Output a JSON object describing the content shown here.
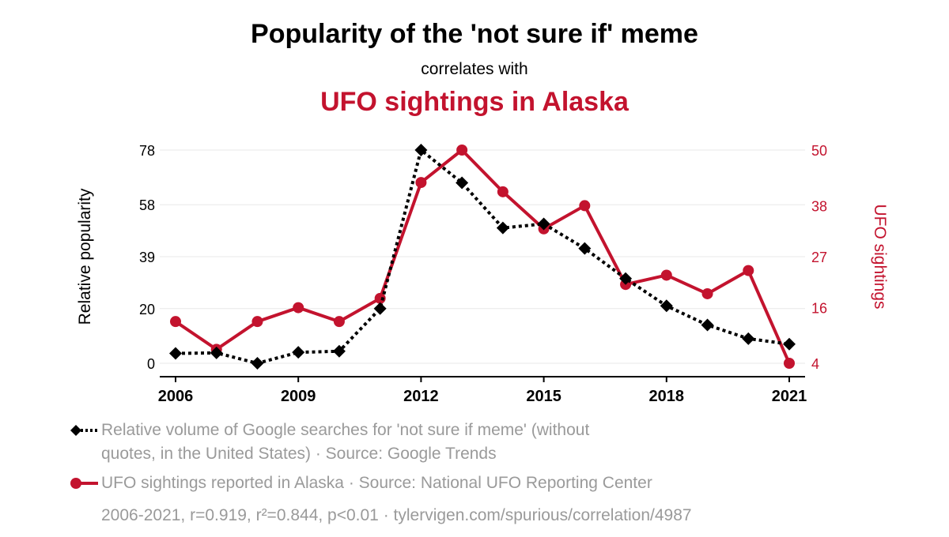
{
  "header": {
    "title": "Popularity of the 'not sure if' meme",
    "subtitle": "correlates with",
    "title2": "UFO sightings in Alaska"
  },
  "colors": {
    "series1": "#000000",
    "series2": "#c3132e",
    "grid": "#e8e8e8",
    "legend_text": "#9a9a9a"
  },
  "chart_data": {
    "type": "line",
    "x": [
      2006,
      2007,
      2008,
      2009,
      2010,
      2011,
      2012,
      2013,
      2014,
      2015,
      2016,
      2017,
      2018,
      2019,
      2020,
      2021
    ],
    "x_ticks": [
      "2006",
      "2009",
      "2012",
      "2015",
      "2018",
      "2021"
    ],
    "xlim": [
      2006,
      2021
    ],
    "ylabel_left": "Relative popularity",
    "ylabel_right": "UFO sightings",
    "y_left_ticks": [
      "0",
      "20",
      "39",
      "58",
      "78"
    ],
    "y_right_ticks": [
      "4",
      "16",
      "27",
      "38",
      "50"
    ],
    "ylim_left": [
      0,
      78
    ],
    "ylim_right": [
      4,
      50
    ],
    "grid": "horizontal",
    "series": [
      {
        "axis": "left",
        "style": "dotted-line-diamond-markers",
        "values": [
          3.6,
          3.8,
          0,
          4,
          4.4,
          20,
          78,
          66,
          49.5,
          51,
          42,
          31,
          21,
          14,
          9,
          7
        ]
      },
      {
        "axis": "right",
        "style": "solid-line-circle-markers",
        "values": [
          13,
          7,
          13,
          16,
          13,
          18,
          43,
          50,
          41,
          33,
          38,
          21,
          23,
          19,
          24,
          4
        ]
      }
    ]
  },
  "legend": {
    "item1_line1": "Relative volume of Google searches for 'not sure if meme' (without",
    "item1_line2": "quotes, in the United States) · Source: Google Trends",
    "item2": "UFO sightings reported in Alaska · Source: National UFO Reporting Center",
    "stats": "2006-2021, r=0.919, r²=0.844, p<0.01 · tylervigen.com/spurious/correlation/4987"
  }
}
